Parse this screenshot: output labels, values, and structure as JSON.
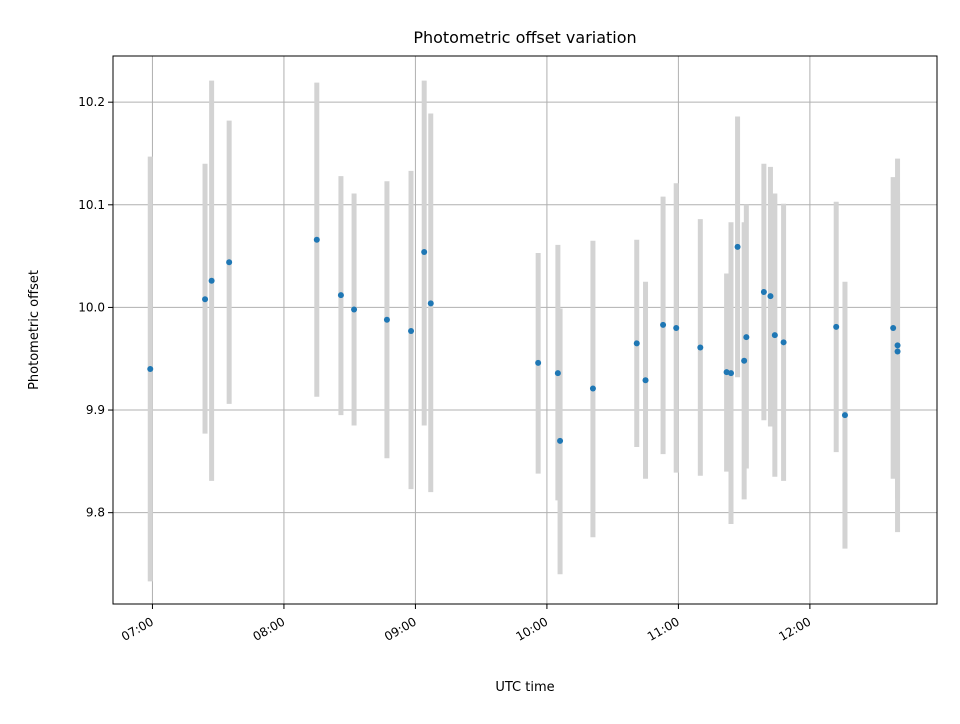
{
  "chart_data": {
    "type": "scatter",
    "title": "Photometric offset variation",
    "xlabel": "UTC time",
    "ylabel": "Photometric offset",
    "x_tick_labels": [
      "07:00",
      "08:00",
      "09:00",
      "10:00",
      "11:00",
      "12:00"
    ],
    "x_tick_values": [
      "07:00",
      "08:00",
      "09:00",
      "10:00",
      "11:00",
      "12:00"
    ],
    "y_tick_values": [
      9.8,
      9.9,
      10.0,
      10.1,
      10.2
    ],
    "y_tick_labels": [
      "9.8",
      "9.9",
      "10.0",
      "10.1",
      "10.2"
    ],
    "xlim": [
      "06:42",
      "12:58"
    ],
    "ylim": [
      9.711,
      10.245
    ],
    "grid": true,
    "colors": {
      "point": "#1f77b4",
      "errorbar": "#d3d3d3",
      "grid": "#b0b0b0"
    },
    "points": [
      {
        "x": "06:59",
        "y": 9.94,
        "ylow": 9.733,
        "yhigh": 10.147
      },
      {
        "x": "07:24",
        "y": 10.008,
        "ylow": 9.877,
        "yhigh": 10.14
      },
      {
        "x": "07:27",
        "y": 10.026,
        "ylow": 9.831,
        "yhigh": 10.221
      },
      {
        "x": "07:35",
        "y": 10.044,
        "ylow": 9.906,
        "yhigh": 10.182
      },
      {
        "x": "08:15",
        "y": 10.066,
        "ylow": 9.913,
        "yhigh": 10.219
      },
      {
        "x": "08:26",
        "y": 10.012,
        "ylow": 9.895,
        "yhigh": 10.128
      },
      {
        "x": "08:32",
        "y": 9.998,
        "ylow": 9.885,
        "yhigh": 10.111
      },
      {
        "x": "08:47",
        "y": 9.988,
        "ylow": 9.853,
        "yhigh": 10.123
      },
      {
        "x": "08:58",
        "y": 9.977,
        "ylow": 9.823,
        "yhigh": 10.133
      },
      {
        "x": "09:04",
        "y": 10.054,
        "ylow": 9.885,
        "yhigh": 10.221
      },
      {
        "x": "09:07",
        "y": 10.004,
        "ylow": 9.82,
        "yhigh": 10.189
      },
      {
        "x": "09:56",
        "y": 9.946,
        "ylow": 9.838,
        "yhigh": 10.053
      },
      {
        "x": "10:05",
        "y": 9.936,
        "ylow": 9.812,
        "yhigh": 10.061
      },
      {
        "x": "10:06",
        "y": 9.87,
        "ylow": 9.74,
        "yhigh": 9.999
      },
      {
        "x": "10:21",
        "y": 9.921,
        "ylow": 9.776,
        "yhigh": 10.065
      },
      {
        "x": "10:41",
        "y": 9.965,
        "ylow": 9.864,
        "yhigh": 10.066
      },
      {
        "x": "10:45",
        "y": 9.929,
        "ylow": 9.833,
        "yhigh": 10.025
      },
      {
        "x": "10:53",
        "y": 9.983,
        "ylow": 9.857,
        "yhigh": 10.108
      },
      {
        "x": "10:59",
        "y": 9.98,
        "ylow": 9.839,
        "yhigh": 10.121
      },
      {
        "x": "11:10",
        "y": 9.961,
        "ylow": 9.836,
        "yhigh": 10.086
      },
      {
        "x": "11:22",
        "y": 9.937,
        "ylow": 9.84,
        "yhigh": 10.033
      },
      {
        "x": "11:24",
        "y": 9.936,
        "ylow": 9.789,
        "yhigh": 10.083
      },
      {
        "x": "11:27",
        "y": 10.059,
        "ylow": 9.932,
        "yhigh": 10.186
      },
      {
        "x": "11:30",
        "y": 9.948,
        "ylow": 9.813,
        "yhigh": 10.083
      },
      {
        "x": "11:31",
        "y": 9.971,
        "ylow": 9.843,
        "yhigh": 10.1
      },
      {
        "x": "11:39",
        "y": 10.015,
        "ylow": 9.89,
        "yhigh": 10.14
      },
      {
        "x": "11:42",
        "y": 10.011,
        "ylow": 9.884,
        "yhigh": 10.137
      },
      {
        "x": "11:44",
        "y": 9.973,
        "ylow": 9.835,
        "yhigh": 10.111
      },
      {
        "x": "11:48",
        "y": 9.966,
        "ylow": 9.831,
        "yhigh": 10.101
      },
      {
        "x": "12:12",
        "y": 9.981,
        "ylow": 9.859,
        "yhigh": 10.103
      },
      {
        "x": "12:16",
        "y": 9.895,
        "ylow": 9.765,
        "yhigh": 10.025
      },
      {
        "x": "12:38",
        "y": 9.98,
        "ylow": 9.833,
        "yhigh": 10.127
      },
      {
        "x": "12:40",
        "y": 9.957,
        "ylow": 9.781,
        "yhigh": 10.145
      },
      {
        "x": "12:40",
        "y": 9.963,
        "ylow": 9.814,
        "yhigh": 10.112
      }
    ]
  }
}
